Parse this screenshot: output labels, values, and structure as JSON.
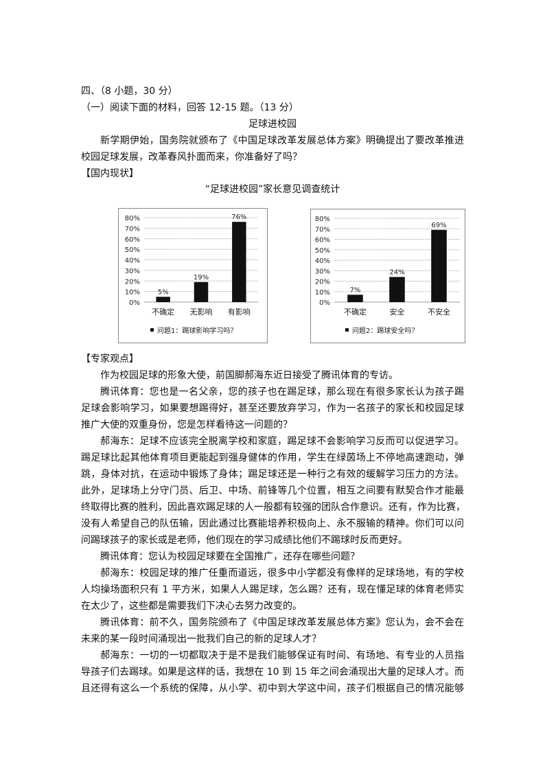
{
  "header": {
    "section": "四、（8 小题，30 分）",
    "part": "（一）阅读下面的材料，回答 12-15 题。（13 分）",
    "title": "足球进校园"
  },
  "intro": [
    "新学期伊始，国务院就颁布了《中国足球改革发展总体方案》明确提出了要改革推进",
    "校园足球发展，改革春风扑面而来，你准备好了吗？"
  ],
  "section_domestic": "【国内现状】",
  "survey_title": "“足球进校园”家长意见调查统计",
  "chart_data": [
    {
      "type": "bar",
      "categories": [
        "不确定",
        "无影响",
        "有影响"
      ],
      "values": [
        5,
        19,
        76
      ],
      "data_labels": [
        "5%",
        "19%",
        "76%"
      ],
      "yticks": [
        "0%",
        "10%",
        "20%",
        "30%",
        "40%",
        "50%",
        "60%",
        "70%",
        "80%"
      ],
      "ylim": [
        0,
        80
      ],
      "grid": true,
      "legend": "问题1：踢球影响学习吗？",
      "legend_placement": "bottom",
      "color": "#111111"
    },
    {
      "type": "bar",
      "categories": [
        "不确定",
        "安全",
        "不安全"
      ],
      "values": [
        7,
        24,
        69
      ],
      "data_labels": [
        "7%",
        "24%",
        "69%"
      ],
      "yticks": [
        "0%",
        "10%",
        "20%",
        "30%",
        "40%",
        "50%",
        "60%",
        "70%",
        "80%"
      ],
      "ylim": [
        0,
        80
      ],
      "grid": true,
      "legend": "问题2：踢球安全吗？",
      "legend_placement": "bottom",
      "color": "#111111"
    }
  ],
  "section_expert": "【专家观点】",
  "body_lines": [
    {
      "t": "作为校园足球的形象大使，前国脚郝海东近日接受了腾讯体育的专访。",
      "ind": true,
      "end": true
    },
    {
      "t": "腾讯体育：您也是一名父亲，您的孩子也在踢足球，那么现在有很多家长认为孩子踢",
      "ind": true
    },
    {
      "t": "足球会影响学习，如果要想踢得好，甚至还要放弃学习，作为一名孩子的家长和校园足球"
    },
    {
      "t": "推广大使的双重身份，您是怎样看待这一问题的？",
      "end": true
    },
    {
      "t": "郝海东：足球不应该完全脱离学校和家庭，踢足球不会影响学习反而可以促进学习。",
      "ind": true
    },
    {
      "t": "踢足球比起其他体育项目更能起到强身健体的作用，学生在绿茵场上不停地高速跑动，弹"
    },
    {
      "t": "跳，身体对抗，在运动中锻炼了身体；踢足球还是一种行之有效的缓解学习压力的方法。"
    },
    {
      "t": "此外，足球场上分守门员、后卫、中场、前锋等几个位置，相互之间要有默契合作才能最"
    },
    {
      "t": "终取得比赛的胜利，因此喜欢踢足球的人一般都有较强的团队合作意识。还有，作为比赛，"
    },
    {
      "t": "没有人希望自己的队伍输，因此通过比赛能培养积极向上、永不服输的精神。你们可以问"
    },
    {
      "t": "问踢球孩子的家长或是老师，他们现在的学习成绩比他们不踢球时反而更好。",
      "end": true
    },
    {
      "t": "腾讯体育：您认为校园足球要在全国推广，还存在哪些问题？",
      "ind": true,
      "end": true
    },
    {
      "t": "郝海东：校园足球的推广任重而道远，很多中小学都没有像样的足球场地，有的学校",
      "ind": true
    },
    {
      "t": "人均操场面积只有 1 平方米，如果人人踢足球，怎么踢？还有，现在懂足球的体育老师实"
    },
    {
      "t": "在太少了，这些都是需要我们下决心去努力改变的。",
      "end": true
    },
    {
      "t": "腾讯体育：前不久，国务院颁布了《中国足球改革发展总体方案》您认为，会不会在",
      "ind": true
    },
    {
      "t": "未来的某一段时间涌现出一批我们自己的新的足球人才？",
      "end": true
    },
    {
      "t": "郝海东：一切的一切都取决于是不是我们能够保证有时间、有场地、有专业的人员指",
      "ind": true
    },
    {
      "t": "导孩子们去踢球。如果是这样的话，我想在 10 到 15 年之间会涌现出大量的足球人才。而"
    },
    {
      "t": "且还得有这么一个系统的保障，从小学、初中到大学这中间，孩子们根据自己的情况能够"
    }
  ]
}
